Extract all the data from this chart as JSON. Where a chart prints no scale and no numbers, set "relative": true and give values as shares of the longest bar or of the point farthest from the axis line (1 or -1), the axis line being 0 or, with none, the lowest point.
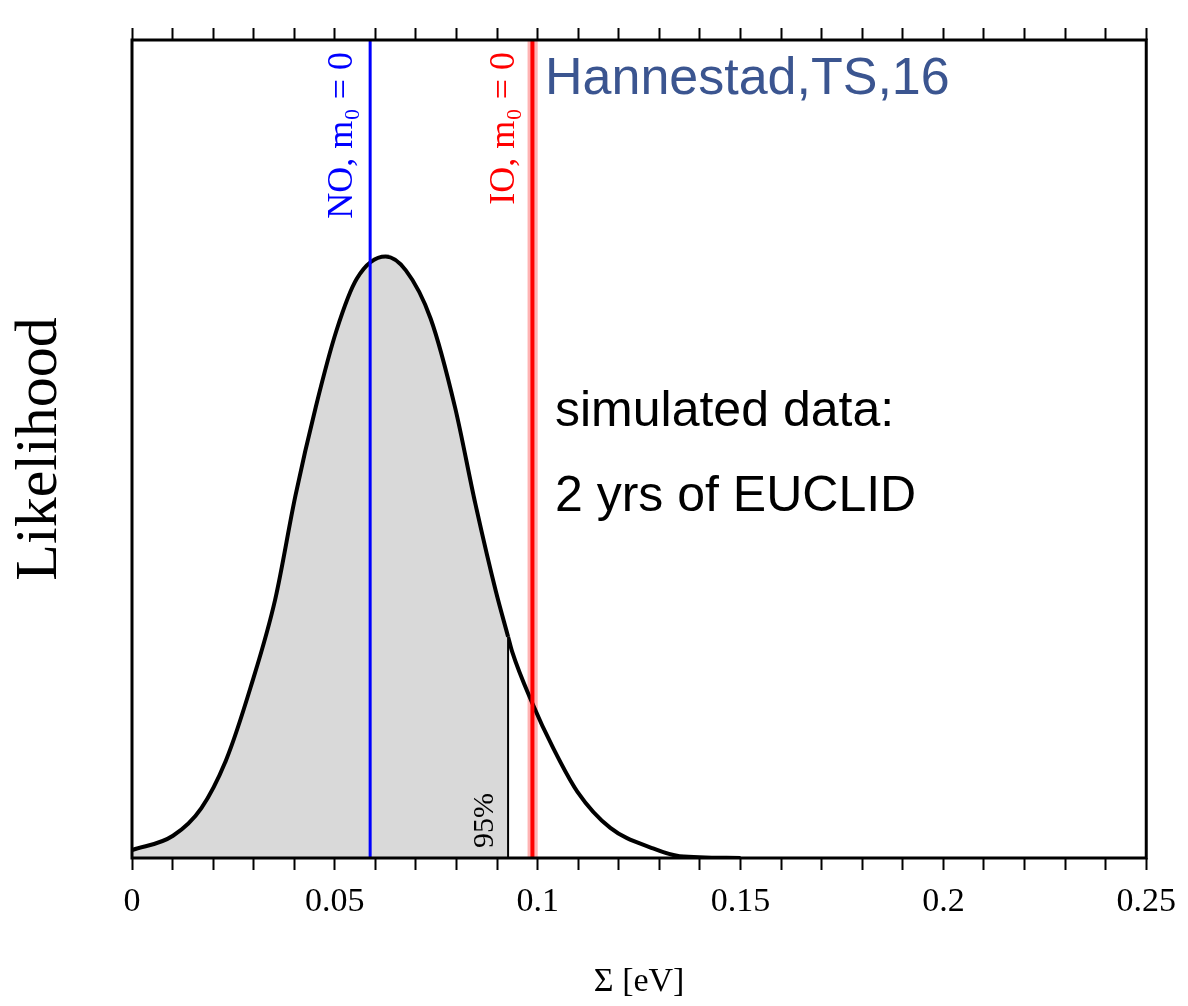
{
  "chart_data": {
    "type": "area",
    "xlabel": "Σ [eV]",
    "ylabel": "Likelihood",
    "relative": true,
    "legend": false,
    "grid": false,
    "xlim": [
      0,
      0.25
    ],
    "xticks": [
      0,
      {
        "value": 0.01,
        "label": null
      },
      {
        "value": 0.02,
        "label": null
      },
      {
        "value": 0.03,
        "label": null
      },
      {
        "value": 0.04,
        "label": null
      },
      0.05,
      {
        "value": 0.06,
        "label": null
      },
      {
        "value": 0.07,
        "label": null
      },
      {
        "value": 0.08,
        "label": null
      },
      {
        "value": 0.09,
        "label": null
      },
      0.1,
      {
        "value": 0.11,
        "label": null
      },
      {
        "value": 0.12,
        "label": null
      },
      {
        "value": 0.13,
        "label": null
      },
      {
        "value": 0.14,
        "label": null
      },
      0.15,
      {
        "value": 0.16,
        "label": null
      },
      {
        "value": 0.17,
        "label": null
      },
      {
        "value": 0.18,
        "label": null
      },
      {
        "value": 0.19,
        "label": null
      },
      0.2,
      {
        "value": 0.21,
        "label": null
      },
      {
        "value": 0.22,
        "label": null
      },
      {
        "value": 0.23,
        "label": null
      },
      {
        "value": 0.24,
        "label": null
      },
      0.25
    ],
    "series": [
      {
        "color": "#000000",
        "x": [
          0,
          0.0101,
          0.0171,
          0.0232,
          0.0292,
          0.0353,
          0.0403,
          0.0453,
          0.0504,
          0.0554,
          0.0625,
          0.0675,
          0.0736,
          0.0796,
          0.0846,
          0.0897,
          0.0927
        ],
        "values": [
          0.013,
          0.037,
          0.083,
          0.163,
          0.283,
          0.43,
          0.603,
          0.75,
          0.877,
          0.963,
          1,
          0.977,
          0.897,
          0.75,
          0.59,
          0.443,
          0.368
        ]
      },
      {
        "type": "line",
        "color": "#000000",
        "x": [
          0.0927,
          0.0937,
          0.0987,
          0.1038,
          0.1098,
          0.1179,
          0.128,
          0.135,
          0.15
        ],
        "values": [
          0.368,
          0.343,
          0.257,
          0.183,
          0.11,
          0.05,
          0.017,
          0.003,
          0
        ]
      }
    ],
    "bands": [
      {
        "axis": "x",
        "from": 0.0975,
        "to": 0.1,
        "color": "#ffb3b3"
      }
    ],
    "ref_lines": [
      {
        "axis": "x",
        "value": 0.0587,
        "label": "NO, m₀ = 0",
        "color": "#0000ff"
      },
      {
        "axis": "x",
        "value": 0.0987,
        "label": "IO, m₀ = 0",
        "color": "#ff0000"
      },
      {
        "axis": "x",
        "value": 0.0927,
        "color": "#000000"
      }
    ],
    "annotations": [
      "Hannestad,TS,16",
      "simulated data:\n2 yrs of EUCLID",
      {
        "text": "95%",
        "x": 0.0927
      }
    ]
  }
}
